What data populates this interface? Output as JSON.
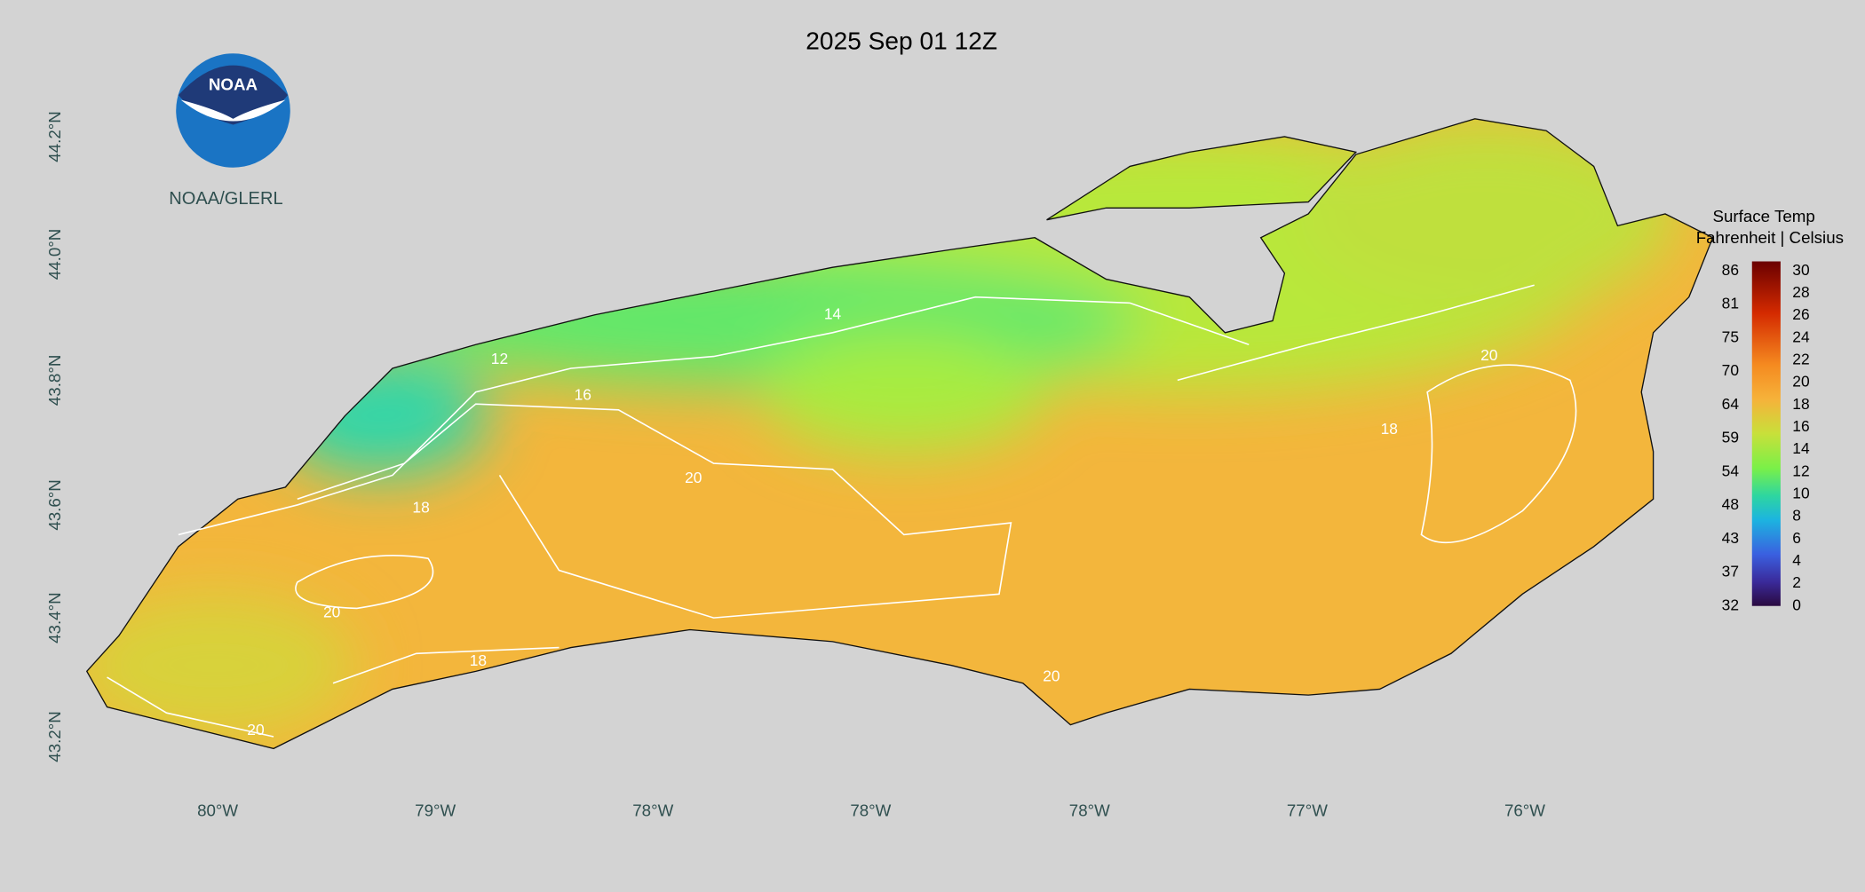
{
  "title": "2025 Sep 01 12Z",
  "logo": {
    "text": "NOAA",
    "caption": "NOAA/GLERL"
  },
  "latitude_labels": [
    "44.2°N",
    "44.0°N",
    "43.8°N",
    "43.6°N",
    "43.4°N",
    "43.2°N"
  ],
  "longitude_labels": [
    "80°W",
    "79°W",
    "78°W",
    "78°W",
    "78°W",
    "77°W",
    "76°W"
  ],
  "legend": {
    "title": "Surface Temp",
    "subtitle": "Fahrenheit | Celsius",
    "fahrenheit": [
      "86",
      "81",
      "75",
      "70",
      "64",
      "59",
      "54",
      "48",
      "43",
      "37",
      "32"
    ],
    "celsius": [
      "30",
      "28",
      "26",
      "24",
      "22",
      "20",
      "18",
      "16",
      "14",
      "12",
      "10",
      "8",
      "6",
      "4",
      "2",
      "0"
    ]
  },
  "contour_labels": [
    "14",
    "12",
    "16",
    "20",
    "18",
    "20",
    "18",
    "20",
    "20",
    "20",
    "18"
  ]
}
